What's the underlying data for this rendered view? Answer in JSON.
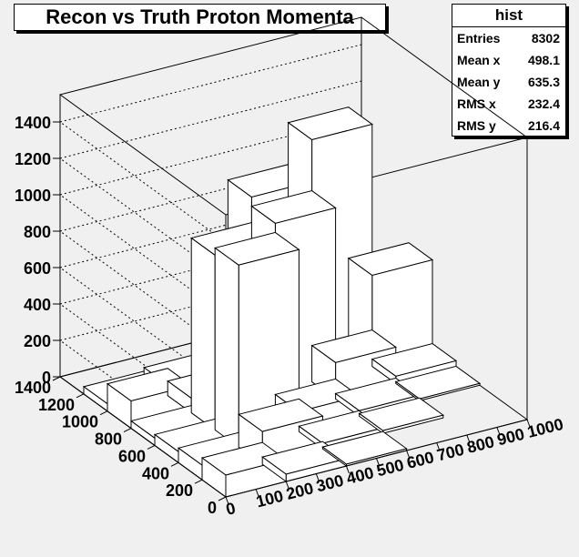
{
  "chart_data": {
    "type": "lego3d",
    "title": "Recon vs Truth Proton Momenta",
    "x_ticks": [
      "0",
      "100",
      "200",
      "300",
      "400",
      "500",
      "600",
      "700",
      "800",
      "900",
      "1000"
    ],
    "y_ticks": [
      "0",
      "200",
      "400",
      "600",
      "800",
      "1000",
      "1200",
      "1400"
    ],
    "z_ticks": [
      "0",
      "200",
      "400",
      "600",
      "800",
      "1000",
      "1200",
      "1400"
    ],
    "xlim": [
      0,
      1000
    ],
    "ylim": [
      0,
      1400
    ],
    "zlim": [
      0,
      1550
    ],
    "grid": true,
    "bins": [
      {
        "x": [
          0,
          200
        ],
        "y": [
          0,
          200
        ],
        "z": 120
      },
      {
        "x": [
          200,
          400
        ],
        "y": [
          0,
          200
        ],
        "z": 40
      },
      {
        "x": [
          400,
          600
        ],
        "y": [
          0,
          200
        ],
        "z": 10
      },
      {
        "x": [
          0,
          200
        ],
        "y": [
          200,
          400
        ],
        "z": 80
      },
      {
        "x": [
          200,
          400
        ],
        "y": [
          200,
          400
        ],
        "z": 180
      },
      {
        "x": [
          400,
          600
        ],
        "y": [
          200,
          400
        ],
        "z": 30
      },
      {
        "x": [
          600,
          800
        ],
        "y": [
          200,
          400
        ],
        "z": 15
      },
      {
        "x": [
          0,
          200
        ],
        "y": [
          400,
          600
        ],
        "z": 60
      },
      {
        "x": [
          200,
          400
        ],
        "y": [
          400,
          600
        ],
        "z": 1000
      },
      {
        "x": [
          400,
          600
        ],
        "y": [
          400,
          600
        ],
        "z": 110
      },
      {
        "x": [
          600,
          800
        ],
        "y": [
          400,
          600
        ],
        "z": 30
      },
      {
        "x": [
          800,
          1000
        ],
        "y": [
          400,
          600
        ],
        "z": 10
      },
      {
        "x": [
          0,
          200
        ],
        "y": [
          600,
          800
        ],
        "z": 40
      },
      {
        "x": [
          200,
          400
        ],
        "y": [
          600,
          800
        ],
        "z": 960
      },
      {
        "x": [
          400,
          600
        ],
        "y": [
          600,
          800
        ],
        "z": 1050
      },
      {
        "x": [
          600,
          800
        ],
        "y": [
          600,
          800
        ],
        "z": 200
      },
      {
        "x": [
          800,
          1000
        ],
        "y": [
          600,
          800
        ],
        "z": 40
      },
      {
        "x": [
          0,
          200
        ],
        "y": [
          800,
          1000
        ],
        "z": 150
      },
      {
        "x": [
          200,
          400
        ],
        "y": [
          800,
          1000
        ],
        "z": 80
      },
      {
        "x": [
          400,
          600
        ],
        "y": [
          800,
          1000
        ],
        "z": 1100
      },
      {
        "x": [
          600,
          800
        ],
        "y": [
          800,
          1000
        ],
        "z": 1330
      },
      {
        "x": [
          800,
          1000
        ],
        "y": [
          800,
          1000
        ],
        "z": 500
      },
      {
        "x": [
          0,
          200
        ],
        "y": [
          1000,
          1200
        ],
        "z": 40
      },
      {
        "x": [
          200,
          400
        ],
        "y": [
          1000,
          1200
        ],
        "z": 60
      },
      {
        "x": [
          400,
          600
        ],
        "y": [
          1000,
          1200
        ],
        "z": 100
      },
      {
        "x": [
          600,
          800
        ],
        "y": [
          1000,
          1200
        ],
        "z": 70
      },
      {
        "x": [
          800,
          1000
        ],
        "y": [
          1000,
          1200
        ],
        "z": 150
      }
    ]
  },
  "stats": {
    "title": "hist",
    "rows": [
      {
        "label": "Entries",
        "value": "8302"
      },
      {
        "label": "Mean x",
        "value": "498.1"
      },
      {
        "label": "Mean y",
        "value": "635.3"
      },
      {
        "label": "RMS x",
        "value": "232.4"
      },
      {
        "label": "RMS y",
        "value": "216.4"
      }
    ]
  },
  "colors": {
    "frame_bg": "#f0f0f0",
    "bar_fill": "#ffffff",
    "line": "#000000"
  }
}
